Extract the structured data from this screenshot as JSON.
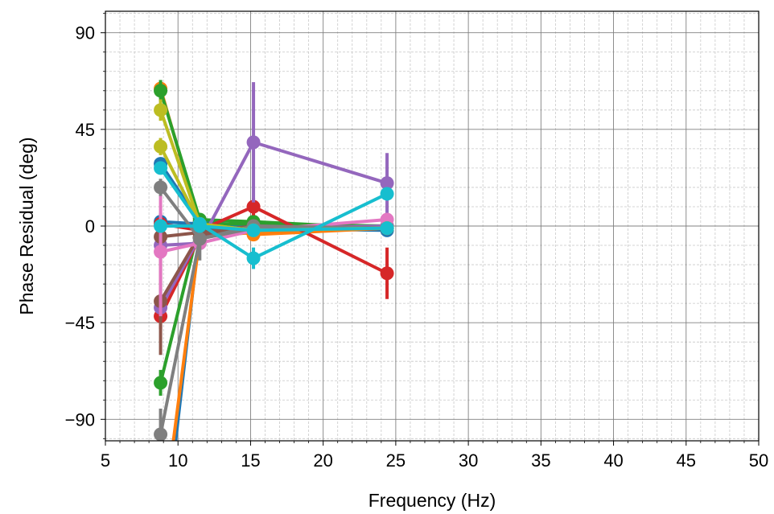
{
  "chart_data": {
    "type": "scatter",
    "xlabel": "Frequency (Hz)",
    "ylabel": "Phase Residual (deg)",
    "xlim": [
      5,
      50
    ],
    "ylim": [
      -100,
      100
    ],
    "x_ticks": [
      5,
      10,
      15,
      20,
      25,
      30,
      35,
      40,
      45,
      50
    ],
    "x_tick_labels": [
      "5",
      "10",
      "15",
      "20",
      "25",
      "30",
      "35",
      "40",
      "45",
      "50"
    ],
    "y_ticks": [
      -90,
      -45,
      0,
      45,
      90
    ],
    "y_tick_labels": [
      "−90",
      "−45",
      "0",
      "45",
      "90"
    ],
    "grid": true,
    "minor_grid": true,
    "legend": "none",
    "line_width": 4,
    "marker": "circle",
    "frequencies": [
      8.8,
      11.5,
      15.2,
      24.4
    ],
    "series": [
      {
        "color": "#1f77b4",
        "points": [
          [
            8.8,
            2
          ],
          [
            11.5,
            1
          ],
          [
            15.2,
            -1
          ],
          [
            24.4,
            -2
          ]
        ],
        "err": [
          3,
          2,
          2,
          2
        ]
      },
      {
        "color": "#1f77b4",
        "points": [
          [
            8.8,
            29
          ],
          [
            11.5,
            2
          ],
          [
            15.2,
            0
          ],
          [
            24.4,
            -1
          ]
        ],
        "err": [
          3,
          2,
          2,
          2
        ]
      },
      {
        "color": "#1f77b4",
        "points": [
          [
            9.5,
            -120
          ],
          [
            11.5,
            -2
          ],
          [
            15.2,
            -1
          ],
          [
            24.4,
            -1
          ]
        ],
        "err": [
          0,
          2,
          2,
          2
        ]
      },
      {
        "color": "#ff7f0e",
        "points": [
          [
            8.8,
            64
          ],
          [
            11.5,
            1
          ],
          [
            15.2,
            -4
          ],
          [
            24.4,
            -1
          ]
        ],
        "err": [
          3,
          2,
          2,
          2
        ]
      },
      {
        "color": "#ff7f0e",
        "points": [
          [
            9.3,
            -120
          ],
          [
            11.5,
            -5
          ],
          [
            15.2,
            -3
          ],
          [
            24.4,
            -1
          ]
        ],
        "err": [
          0,
          2,
          2,
          2
        ]
      },
      {
        "color": "#2ca02c",
        "points": [
          [
            8.8,
            63
          ],
          [
            11.5,
            3
          ],
          [
            15.2,
            2
          ],
          [
            24.4,
            -1
          ]
        ],
        "err": [
          5,
          2,
          2,
          2
        ]
      },
      {
        "color": "#2ca02c",
        "points": [
          [
            8.8,
            -73
          ],
          [
            11.5,
            1
          ],
          [
            15.2,
            1
          ],
          [
            24.4,
            0
          ]
        ],
        "err": [
          6,
          2,
          2,
          2
        ]
      },
      {
        "color": "#d62728",
        "points": [
          [
            8.8,
            1
          ],
          [
            11.5,
            -2
          ],
          [
            15.2,
            9
          ],
          [
            24.4,
            -22
          ]
        ],
        "err": [
          5,
          2,
          4,
          12
        ]
      },
      {
        "color": "#d62728",
        "points": [
          [
            8.8,
            -42
          ],
          [
            11.5,
            -5
          ],
          [
            15.2,
            -2
          ],
          [
            24.4,
            -1
          ]
        ],
        "err": [
          6,
          2,
          2,
          2
        ]
      },
      {
        "color": "#9467bd",
        "points": [
          [
            8.8,
            -9
          ],
          [
            11.5,
            -8
          ],
          [
            15.2,
            39
          ],
          [
            24.4,
            20
          ]
        ],
        "err": [
          5,
          3,
          28,
          14
        ]
      },
      {
        "color": "#9467bd",
        "points": [
          [
            8.8,
            -38
          ],
          [
            11.5,
            -5
          ],
          [
            15.2,
            -1
          ],
          [
            24.4,
            0
          ]
        ],
        "err": [
          6,
          2,
          2,
          2
        ]
      },
      {
        "color": "#8c564b",
        "points": [
          [
            8.8,
            -35
          ],
          [
            11.5,
            -4
          ],
          [
            15.2,
            -1
          ],
          [
            24.4,
            -1
          ]
        ],
        "err": [
          25,
          3,
          2,
          2
        ]
      },
      {
        "color": "#8c564b",
        "points": [
          [
            8.8,
            -5
          ],
          [
            11.5,
            -3
          ],
          [
            15.2,
            0
          ],
          [
            24.4,
            -1
          ]
        ],
        "err": [
          4,
          2,
          2,
          2
        ]
      },
      {
        "color": "#e377c2",
        "points": [
          [
            8.8,
            -12
          ],
          [
            11.5,
            -8
          ],
          [
            15.2,
            -2
          ],
          [
            24.4,
            3
          ]
        ],
        "err": [
          30,
          2,
          2,
          2
        ]
      },
      {
        "color": "#7f7f7f",
        "points": [
          [
            8.8,
            18
          ],
          [
            11.5,
            -6
          ],
          [
            15.2,
            0
          ],
          [
            24.4,
            -1
          ]
        ],
        "err": [
          4,
          2,
          2,
          2
        ]
      },
      {
        "color": "#7f7f7f",
        "points": [
          [
            8.8,
            -97
          ],
          [
            11.5,
            -6
          ],
          [
            15.2,
            -1
          ],
          [
            24.4,
            -1
          ]
        ],
        "err": [
          12,
          10,
          2,
          2
        ]
      },
      {
        "color": "#bcbd22",
        "points": [
          [
            8.8,
            54
          ],
          [
            11.5,
            1
          ],
          [
            15.2,
            -2
          ],
          [
            24.4,
            -1
          ]
        ],
        "err": [
          5,
          2,
          2,
          2
        ]
      },
      {
        "color": "#bcbd22",
        "points": [
          [
            8.8,
            37
          ],
          [
            11.5,
            1
          ],
          [
            15.2,
            -2
          ],
          [
            24.4,
            -1
          ]
        ],
        "err": [
          4,
          2,
          2,
          2
        ]
      },
      {
        "color": "#17becf",
        "points": [
          [
            8.8,
            27
          ],
          [
            11.5,
            1
          ],
          [
            15.2,
            -15
          ],
          [
            24.4,
            15
          ]
        ],
        "err": [
          3,
          2,
          5,
          3
        ]
      },
      {
        "color": "#17becf",
        "points": [
          [
            8.8,
            0
          ],
          [
            11.5,
            0
          ],
          [
            15.2,
            -2
          ],
          [
            24.4,
            -1
          ]
        ],
        "err": [
          2,
          2,
          2,
          2
        ]
      }
    ]
  }
}
